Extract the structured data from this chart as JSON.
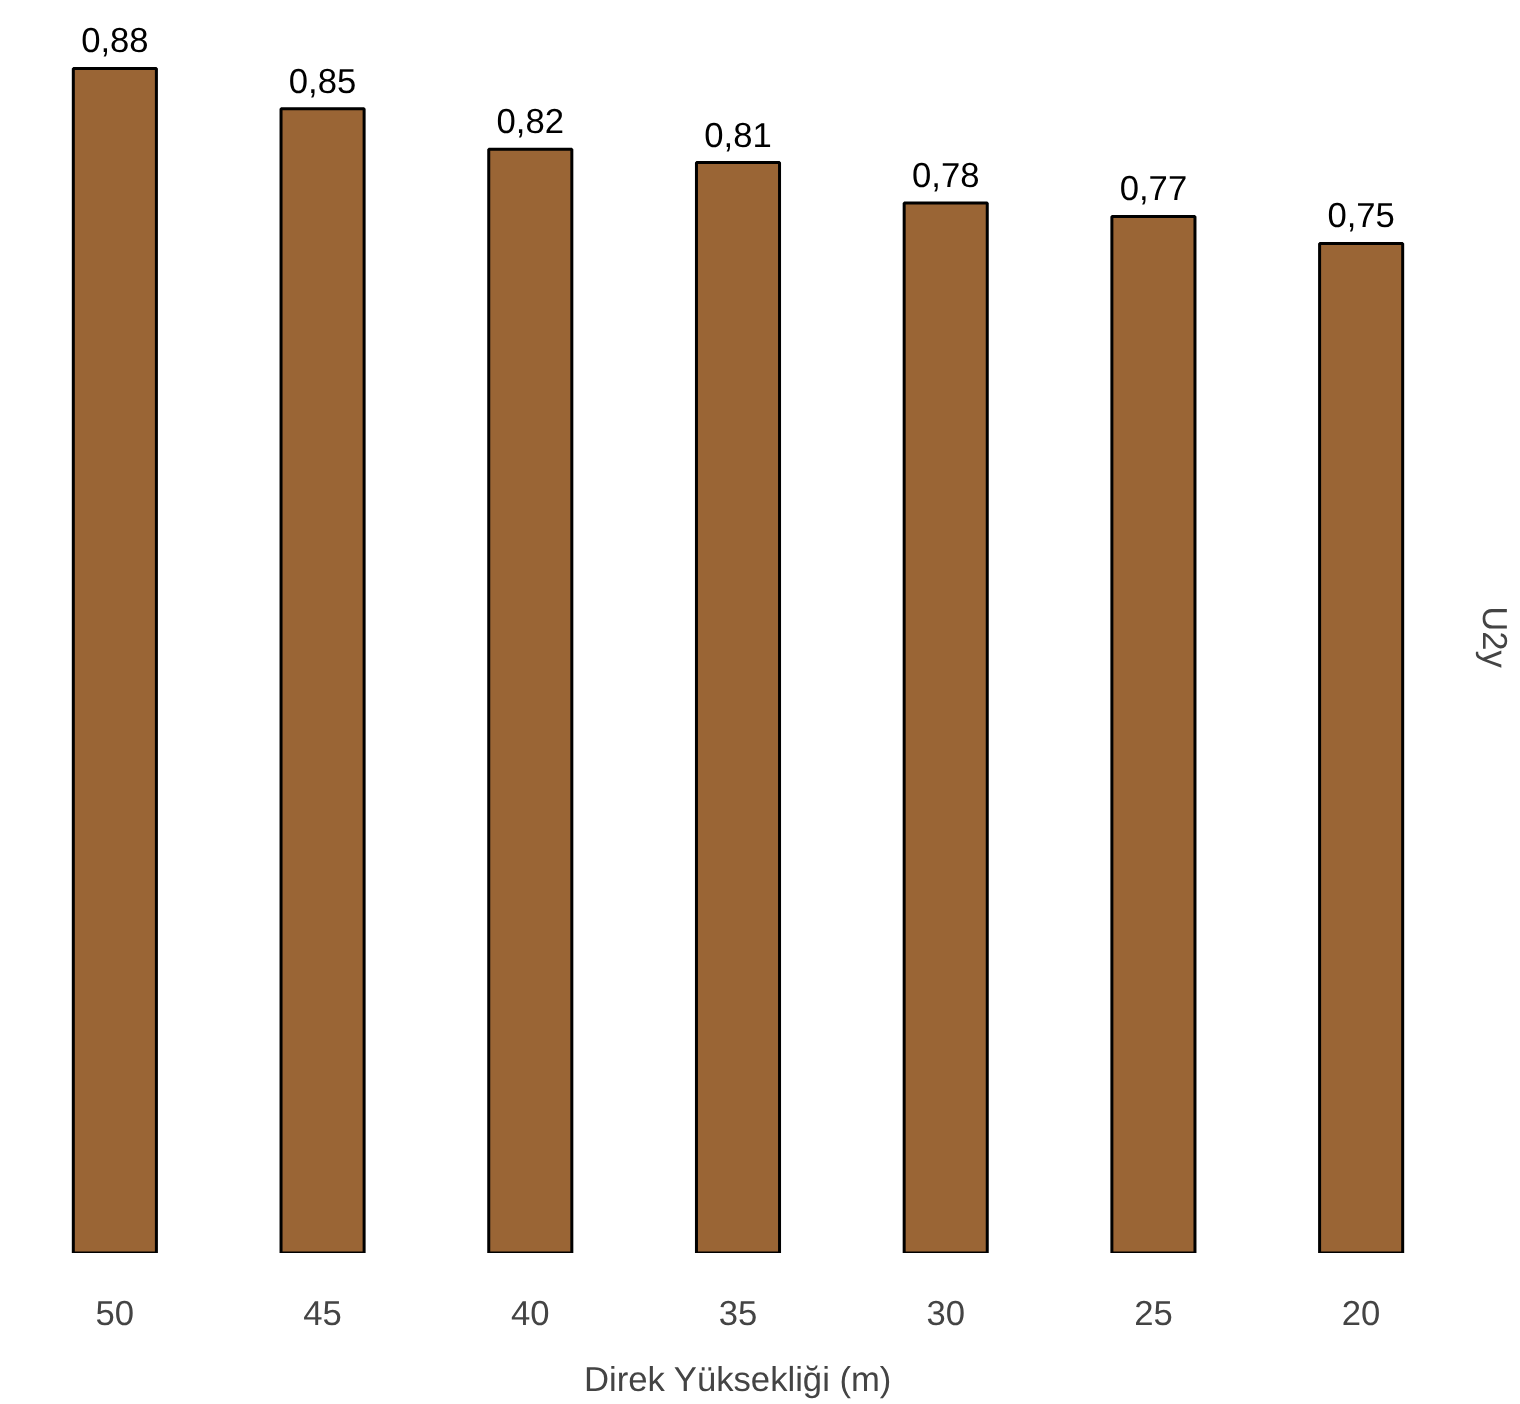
{
  "chart_data": {
    "type": "bar",
    "xlabel": "Direk Yüksekliği (m)",
    "ylabel": "U2y",
    "categories": [
      "50",
      "45",
      "40",
      "35",
      "30",
      "25",
      "20"
    ],
    "values": [
      0.88,
      0.85,
      0.82,
      0.81,
      0.78,
      0.77,
      0.75
    ],
    "value_labels": [
      "0,88",
      "0,85",
      "0,82",
      "0,81",
      "0,78",
      "0,77",
      "0,75"
    ],
    "color": "#9a6535",
    "tick_labels": "x"
  }
}
